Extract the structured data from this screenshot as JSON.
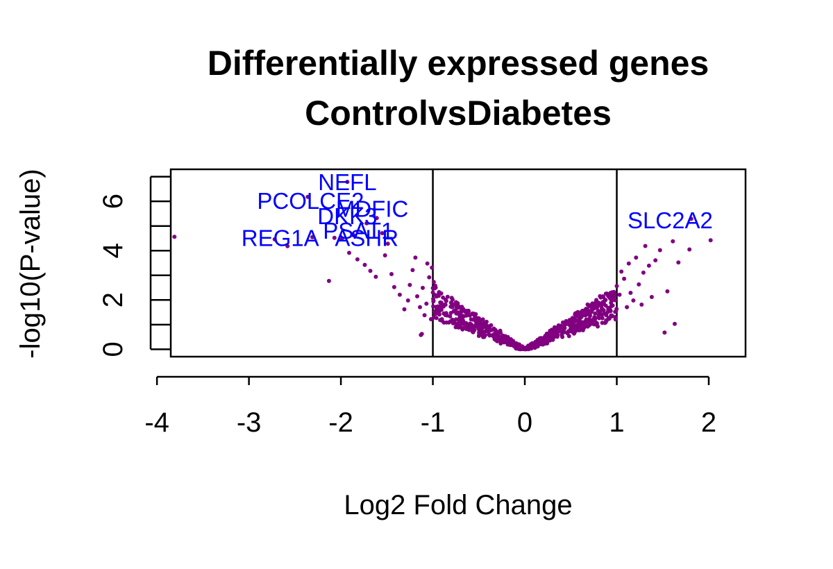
{
  "chart_data": {
    "type": "scatter",
    "title": "Differentially expressed genes",
    "subtitle": "ControlvsDiabetes",
    "xlabel": "Log2 Fold Change",
    "ylabel": "-log10(P-value)",
    "xlim": [
      -3.85,
      2.4
    ],
    "ylim": [
      -0.3,
      7.3
    ],
    "x_ticks": [
      -4,
      -3,
      -2,
      -1,
      0,
      1,
      2
    ],
    "x_tick_labels": [
      "-4",
      "-3",
      "-2",
      "-1",
      "0",
      "1",
      "2"
    ],
    "y_ticks": [
      0,
      1,
      2,
      3,
      4,
      5,
      6,
      7
    ],
    "y_tick_labels": [
      "0",
      "",
      "2",
      "",
      "4",
      "",
      "6",
      ""
    ],
    "thresholds_x": [
      -1,
      1
    ],
    "point_color": "#800080",
    "label_color": "#0000ff",
    "grid": false,
    "legend": "none",
    "labeled_genes": [
      {
        "gene": "NEFL",
        "x": -1.93,
        "y": 6.79
      },
      {
        "gene": "PCOLCE2",
        "x": -2.33,
        "y": 6.03
      },
      {
        "gene": "MDFIC",
        "x": -1.66,
        "y": 5.71
      },
      {
        "gene": "DKK3",
        "x": -1.93,
        "y": 5.42
      },
      {
        "gene": "SLC2A2",
        "x": 1.58,
        "y": 5.24
      },
      {
        "gene": "PSAT1",
        "x": -1.81,
        "y": 4.82
      },
      {
        "gene": "REG1A",
        "x": -2.66,
        "y": 4.53
      },
      {
        "gene": "ASHR",
        "x": -1.72,
        "y": 4.53
      }
    ],
    "points": [
      {
        "x": -3.81,
        "y": 4.56
      },
      {
        "x": -2.72,
        "y": 4.46
      },
      {
        "x": -2.58,
        "y": 4.18
      },
      {
        "x": -2.36,
        "y": 6.18
      },
      {
        "x": -2.31,
        "y": 4.55
      },
      {
        "x": -2.13,
        "y": 2.77
      },
      {
        "x": -2.07,
        "y": 4.52
      },
      {
        "x": -1.99,
        "y": 4.46
      },
      {
        "x": -1.93,
        "y": 6.79
      },
      {
        "x": -1.86,
        "y": 4.62
      },
      {
        "x": -1.91,
        "y": 3.91
      },
      {
        "x": -1.82,
        "y": 3.65
      },
      {
        "x": -1.74,
        "y": 3.42
      },
      {
        "x": -1.68,
        "y": 3.18
      },
      {
        "x": -1.62,
        "y": 2.94
      },
      {
        "x": -1.72,
        "y": 5.11
      },
      {
        "x": -1.61,
        "y": 5.32
      },
      {
        "x": -1.55,
        "y": 4.71
      },
      {
        "x": -1.49,
        "y": 4.28
      },
      {
        "x": -1.52,
        "y": 3.81
      },
      {
        "x": -1.45,
        "y": 3.05
      },
      {
        "x": -1.42,
        "y": 2.52
      },
      {
        "x": -1.36,
        "y": 2.21
      },
      {
        "x": -1.31,
        "y": 1.62
      },
      {
        "x": -1.27,
        "y": 1.98
      },
      {
        "x": -1.25,
        "y": 2.61
      },
      {
        "x": -1.22,
        "y": 3.21
      },
      {
        "x": -1.19,
        "y": 3.72
      },
      {
        "x": -1.17,
        "y": 2.15
      },
      {
        "x": -1.14,
        "y": 1.71
      },
      {
        "x": -1.13,
        "y": 0.58
      },
      {
        "x": -1.12,
        "y": 0.62
      },
      {
        "x": -1.11,
        "y": 2.49
      },
      {
        "x": -1.09,
        "y": 1.38
      },
      {
        "x": -1.07,
        "y": 1.85
      },
      {
        "x": -1.06,
        "y": 3.48
      },
      {
        "x": -1.04,
        "y": 2.92
      },
      {
        "x": -1.02,
        "y": 1.22
      },
      {
        "x": -1.01,
        "y": 3.31
      },
      {
        "x": -0.99,
        "y": 2.73
      },
      {
        "x": 1.03,
        "y": 2.21
      },
      {
        "x": 1.05,
        "y": 3.15
      },
      {
        "x": 1.08,
        "y": 2.86
      },
      {
        "x": 1.11,
        "y": 1.71
      },
      {
        "x": 1.13,
        "y": 3.48
      },
      {
        "x": 1.15,
        "y": 2.29
      },
      {
        "x": 1.18,
        "y": 1.98
      },
      {
        "x": 1.21,
        "y": 3.72
      },
      {
        "x": 1.24,
        "y": 2.63
      },
      {
        "x": 1.27,
        "y": 1.81
      },
      {
        "x": 1.29,
        "y": 3.11
      },
      {
        "x": 1.31,
        "y": 4.19
      },
      {
        "x": 1.35,
        "y": 3.39
      },
      {
        "x": 1.38,
        "y": 2.12
      },
      {
        "x": 1.42,
        "y": 3.61
      },
      {
        "x": 1.47,
        "y": 4.02
      },
      {
        "x": 1.52,
        "y": 0.68
      },
      {
        "x": 1.55,
        "y": 2.35
      },
      {
        "x": 1.61,
        "y": 4.38
      },
      {
        "x": 1.63,
        "y": 1.03
      },
      {
        "x": 1.67,
        "y": 3.52
      },
      {
        "x": 1.79,
        "y": 4.05
      },
      {
        "x": 1.81,
        "y": 5.29
      },
      {
        "x": 2.02,
        "y": 4.42
      }
    ]
  }
}
